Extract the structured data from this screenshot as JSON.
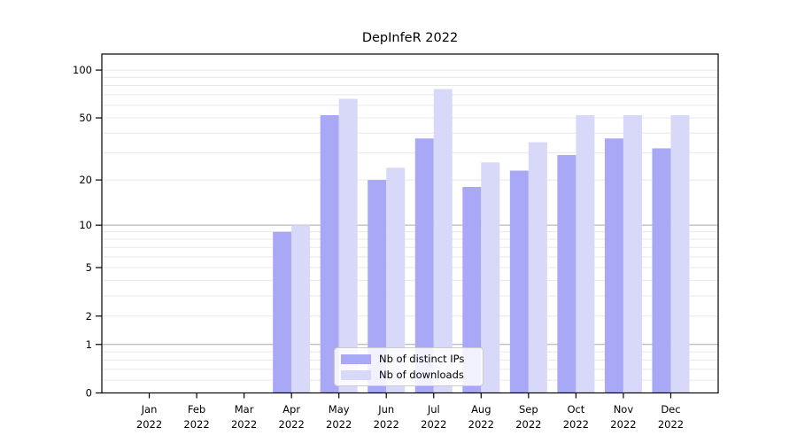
{
  "title": "DepInfeR 2022",
  "colors": {
    "distinct_ips": "#a8a8f6",
    "downloads": "#d8d8f8",
    "grid_minor": "#e8e8e8",
    "grid_emphasis": "#a9a9a9",
    "axis": "#000000",
    "legend_border": "#cccccc",
    "text": "#000000"
  },
  "chart_data": {
    "type": "bar",
    "title": "DepInfeR 2022",
    "categories": [
      {
        "month": "Jan",
        "year": "2022"
      },
      {
        "month": "Feb",
        "year": "2022"
      },
      {
        "month": "Mar",
        "year": "2022"
      },
      {
        "month": "Apr",
        "year": "2022"
      },
      {
        "month": "May",
        "year": "2022"
      },
      {
        "month": "Jun",
        "year": "2022"
      },
      {
        "month": "Jul",
        "year": "2022"
      },
      {
        "month": "Aug",
        "year": "2022"
      },
      {
        "month": "Sep",
        "year": "2022"
      },
      {
        "month": "Oct",
        "year": "2022"
      },
      {
        "month": "Nov",
        "year": "2022"
      },
      {
        "month": "Dec",
        "year": "2022"
      }
    ],
    "series": [
      {
        "name": "Nb of distinct IPs",
        "values": [
          0,
          0,
          0,
          9,
          52,
          20,
          37,
          18,
          23,
          29,
          37,
          32
        ]
      },
      {
        "name": "Nb of downloads",
        "values": [
          0,
          0,
          0,
          10,
          66,
          24,
          76,
          26,
          35,
          52,
          52,
          52
        ]
      }
    ],
    "xlabel": "",
    "ylabel": "",
    "y_scale": "log10(1+x)",
    "ylim": [
      0,
      126
    ],
    "y_ticks": [
      0,
      1,
      2,
      5,
      10,
      20,
      50,
      100
    ],
    "y_tick_labels": [
      "0",
      "1",
      "2",
      "5",
      "10",
      "20",
      "50",
      "100"
    ],
    "y_minor_gridlines": [
      0.2,
      0.4,
      0.6,
      0.8,
      3,
      4,
      6,
      7,
      8,
      9,
      30,
      40,
      60,
      70,
      80,
      90
    ],
    "y_emphasis_gridlines": [
      1,
      10
    ],
    "grid": "on",
    "legend_position": "bottom-center-inside"
  },
  "legend": {
    "items": [
      {
        "label": "Nb of distinct IPs"
      },
      {
        "label": "Nb of downloads"
      }
    ]
  }
}
